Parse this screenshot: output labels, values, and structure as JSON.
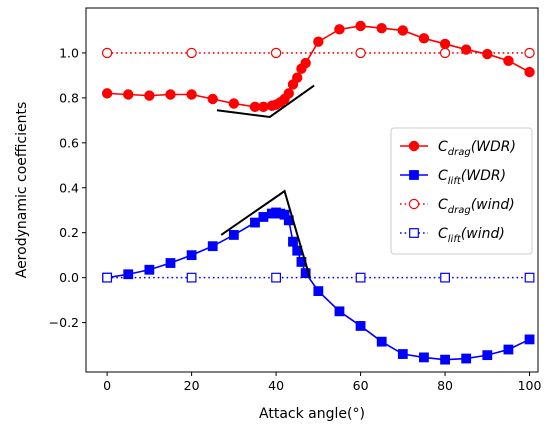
{
  "chart_data": {
    "type": "line",
    "title": "",
    "xlabel": "Attack angle(°)",
    "ylabel": "Aerodynamic coefficients",
    "xlim": [
      -5,
      102
    ],
    "ylim": [
      -0.42,
      1.2
    ],
    "xticks": [
      0,
      20,
      40,
      60,
      80,
      100
    ],
    "yticks": [
      -0.2,
      0.0,
      0.2,
      0.4,
      0.6,
      0.8,
      1.0
    ],
    "ytick_labels": [
      "−0.2",
      "0.0",
      "0.2",
      "0.4",
      "0.6",
      "0.8",
      "1.0"
    ],
    "grid": false,
    "legend_position": "center-right",
    "series": [
      {
        "name": "C_drag(WDR)",
        "legend_base": "C",
        "legend_sub": "drag",
        "legend_tail": "(WDR)",
        "color": "#ff0000",
        "linestyle": "solid",
        "marker": "circle-filled",
        "x": [
          0,
          5,
          10,
          15,
          20,
          25,
          30,
          35,
          37,
          39,
          40,
          41,
          42,
          43,
          44,
          45,
          46,
          47,
          50,
          55,
          60,
          65,
          70,
          75,
          80,
          85,
          90,
          95,
          100
        ],
        "y": [
          0.82,
          0.815,
          0.81,
          0.815,
          0.815,
          0.795,
          0.775,
          0.76,
          0.76,
          0.765,
          0.77,
          0.78,
          0.795,
          0.82,
          0.86,
          0.89,
          0.93,
          0.955,
          1.05,
          1.105,
          1.12,
          1.11,
          1.1,
          1.065,
          1.04,
          1.015,
          0.995,
          0.965,
          0.915
        ]
      },
      {
        "name": "C_lift(WDR)",
        "legend_base": "C",
        "legend_sub": "lift",
        "legend_tail": "(WDR)",
        "color": "#0000ff",
        "linestyle": "solid",
        "marker": "square-filled",
        "x": [
          0,
          5,
          10,
          15,
          20,
          25,
          30,
          35,
          37,
          39,
          40,
          41,
          42,
          43,
          44,
          45,
          46,
          47,
          50,
          55,
          60,
          65,
          70,
          75,
          80,
          85,
          90,
          95,
          100
        ],
        "y": [
          0.0,
          0.015,
          0.035,
          0.065,
          0.1,
          0.14,
          0.19,
          0.245,
          0.27,
          0.285,
          0.29,
          0.285,
          0.28,
          0.255,
          0.16,
          0.12,
          0.07,
          0.02,
          -0.06,
          -0.15,
          -0.215,
          -0.285,
          -0.34,
          -0.355,
          -0.365,
          -0.36,
          -0.345,
          -0.32,
          -0.275
        ]
      },
      {
        "name": "C_drag(wind)",
        "legend_base": "C",
        "legend_sub": "drag",
        "legend_tail": "(wind)",
        "color": "#ff0000",
        "linestyle": "dotted",
        "marker": "circle-open",
        "x": [
          0,
          20,
          40,
          60,
          80,
          100
        ],
        "y": [
          1.0,
          1.0,
          1.0,
          1.0,
          1.0,
          1.0
        ]
      },
      {
        "name": "C_lift(wind)",
        "legend_base": "C",
        "legend_sub": "lift",
        "legend_tail": "(wind)",
        "color": "#0000ff",
        "linestyle": "dotted",
        "marker": "square-open",
        "x": [
          0,
          20,
          40,
          60,
          80,
          100
        ],
        "y": [
          0.0,
          0.0,
          0.0,
          0.0,
          0.0,
          0.0
        ]
      }
    ],
    "annotations": [
      {
        "type": "polyline",
        "color": "#000000",
        "points": [
          [
            26,
            0.745
          ],
          [
            38.5,
            0.715
          ],
          [
            49,
            0.855
          ]
        ]
      },
      {
        "type": "polyline",
        "color": "#000000",
        "points": [
          [
            27,
            0.19
          ],
          [
            42,
            0.385
          ],
          [
            48,
            0.0
          ]
        ]
      }
    ]
  }
}
